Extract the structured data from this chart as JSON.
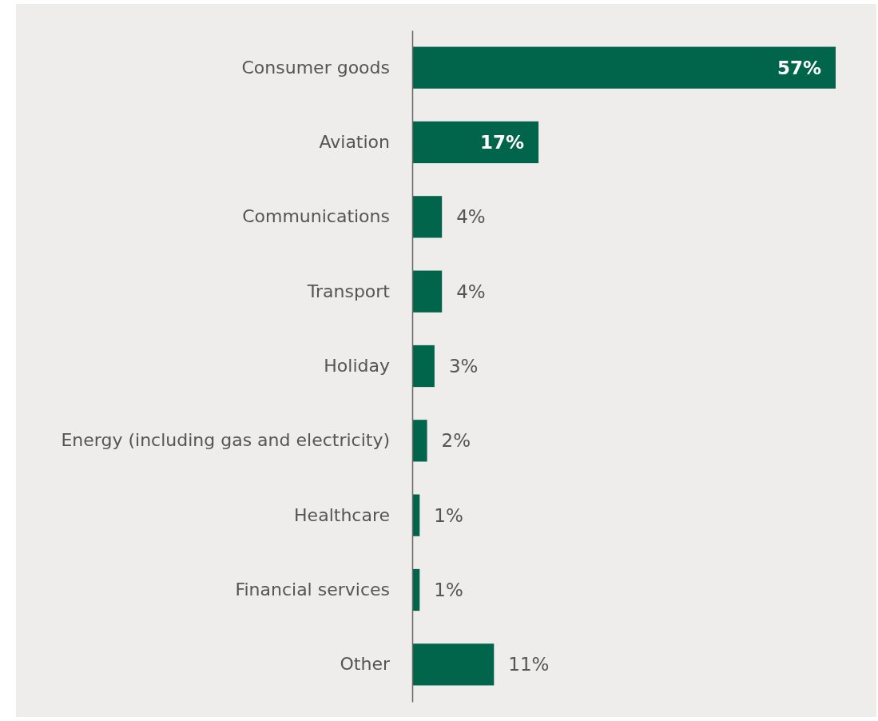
{
  "chart_data": {
    "type": "bar",
    "orientation": "horizontal",
    "categories": [
      "Consumer goods",
      "Aviation",
      "Communications",
      "Transport",
      "Holiday",
      "Energy (including gas and electricity)",
      "Healthcare",
      "Financial services",
      "Other"
    ],
    "values": [
      57,
      17,
      4,
      4,
      3,
      2,
      1,
      1,
      11
    ],
    "value_labels": [
      "57%",
      "17%",
      "4%",
      "4%",
      "3%",
      "2%",
      "1%",
      "1%",
      "11%"
    ],
    "color": "#00654a"
  }
}
